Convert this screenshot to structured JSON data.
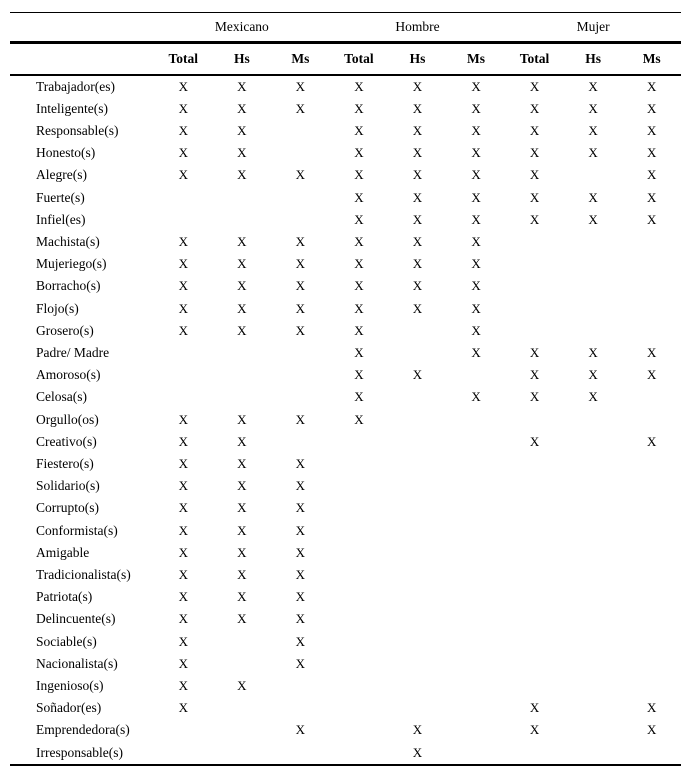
{
  "table": {
    "mark": "X",
    "col_groups": [
      {
        "label": "Mexicano"
      },
      {
        "label": "Hombre"
      },
      {
        "label": "Mujer"
      }
    ],
    "sub_headers": [
      "Total",
      "Hs",
      "Ms"
    ],
    "rows": [
      {
        "label": "Trabajador(es)",
        "cells": [
          1,
          1,
          1,
          1,
          1,
          1,
          1,
          1,
          1
        ]
      },
      {
        "label": "Inteligente(s)",
        "cells": [
          1,
          1,
          1,
          1,
          1,
          1,
          1,
          1,
          1
        ]
      },
      {
        "label": "Responsable(s)",
        "cells": [
          1,
          1,
          0,
          1,
          1,
          1,
          1,
          1,
          1
        ]
      },
      {
        "label": "Honesto(s)",
        "cells": [
          1,
          1,
          0,
          1,
          1,
          1,
          1,
          1,
          1
        ]
      },
      {
        "label": "Alegre(s)",
        "cells": [
          1,
          1,
          1,
          1,
          1,
          1,
          1,
          0,
          1
        ]
      },
      {
        "label": "Fuerte(s)",
        "cells": [
          0,
          0,
          0,
          1,
          1,
          1,
          1,
          1,
          1
        ]
      },
      {
        "label": "Infiel(es)",
        "cells": [
          0,
          0,
          0,
          1,
          1,
          1,
          1,
          1,
          1
        ]
      },
      {
        "label": "Machista(s)",
        "cells": [
          1,
          1,
          1,
          1,
          1,
          1,
          0,
          0,
          0
        ]
      },
      {
        "label": "Mujeriego(s)",
        "cells": [
          1,
          1,
          1,
          1,
          1,
          1,
          0,
          0,
          0
        ]
      },
      {
        "label": "Borracho(s)",
        "cells": [
          1,
          1,
          1,
          1,
          1,
          1,
          0,
          0,
          0
        ]
      },
      {
        "label": "Flojo(s)",
        "cells": [
          1,
          1,
          1,
          1,
          1,
          1,
          0,
          0,
          0
        ]
      },
      {
        "label": "Grosero(s)",
        "cells": [
          1,
          1,
          1,
          1,
          0,
          1,
          0,
          0,
          0
        ]
      },
      {
        "label": "Padre/ Madre",
        "cells": [
          0,
          0,
          0,
          1,
          0,
          1,
          1,
          1,
          1
        ]
      },
      {
        "label": "Amoroso(s)",
        "cells": [
          0,
          0,
          0,
          1,
          1,
          0,
          1,
          1,
          1
        ]
      },
      {
        "label": "Celosa(s)",
        "cells": [
          0,
          0,
          0,
          1,
          0,
          1,
          1,
          1,
          0
        ]
      },
      {
        "label": "Orgullo(os)",
        "cells": [
          1,
          1,
          1,
          1,
          0,
          0,
          0,
          0,
          0
        ]
      },
      {
        "label": "Creativo(s)",
        "cells": [
          1,
          1,
          0,
          0,
          0,
          0,
          1,
          0,
          1
        ]
      },
      {
        "label": "Fiestero(s)",
        "cells": [
          1,
          1,
          1,
          0,
          0,
          0,
          0,
          0,
          0
        ]
      },
      {
        "label": "Solidario(s)",
        "cells": [
          1,
          1,
          1,
          0,
          0,
          0,
          0,
          0,
          0
        ]
      },
      {
        "label": "Corrupto(s)",
        "cells": [
          1,
          1,
          1,
          0,
          0,
          0,
          0,
          0,
          0
        ]
      },
      {
        "label": "Conformista(s)",
        "cells": [
          1,
          1,
          1,
          0,
          0,
          0,
          0,
          0,
          0
        ]
      },
      {
        "label": "Amigable",
        "cells": [
          1,
          1,
          1,
          0,
          0,
          0,
          0,
          0,
          0
        ]
      },
      {
        "label": "Tradicionalista(s)",
        "cells": [
          1,
          1,
          1,
          0,
          0,
          0,
          0,
          0,
          0
        ]
      },
      {
        "label": "Patriota(s)",
        "cells": [
          1,
          1,
          1,
          0,
          0,
          0,
          0,
          0,
          0
        ]
      },
      {
        "label": "Delincuente(s)",
        "cells": [
          1,
          1,
          1,
          0,
          0,
          0,
          0,
          0,
          0
        ]
      },
      {
        "label": "Sociable(s)",
        "cells": [
          1,
          0,
          1,
          0,
          0,
          0,
          0,
          0,
          0
        ]
      },
      {
        "label": "Nacionalista(s)",
        "cells": [
          1,
          0,
          1,
          0,
          0,
          0,
          0,
          0,
          0
        ]
      },
      {
        "label": "Ingenioso(s)",
        "cells": [
          1,
          1,
          0,
          0,
          0,
          0,
          0,
          0,
          0
        ]
      },
      {
        "label": "Soñador(es)",
        "cells": [
          1,
          0,
          0,
          0,
          0,
          0,
          1,
          0,
          1
        ]
      },
      {
        "label": "Emprendedora(s)",
        "cells": [
          0,
          0,
          1,
          0,
          1,
          0,
          1,
          0,
          1
        ]
      },
      {
        "label": "Irresponsable(s)",
        "cells": [
          0,
          0,
          0,
          0,
          1,
          0,
          0,
          0,
          0
        ]
      }
    ],
    "colors": {
      "text": "#000000",
      "background": "#ffffff",
      "rule": "#000000"
    }
  }
}
